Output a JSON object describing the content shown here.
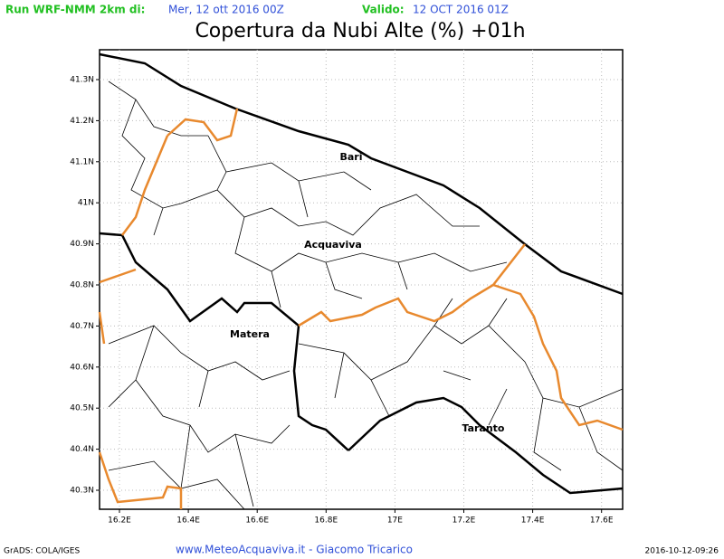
{
  "header": {
    "run_label": "Run WRF-NMM 2km di:",
    "run_date": "Mer, 12 ott 2016 00Z",
    "valid_label": "Valido:",
    "valid_date": "12 OCT 2016 01Z",
    "title": "Copertura da Nubi Alte (%) +01h"
  },
  "map": {
    "lon_labels": [
      "16.2E",
      "16.4E",
      "16.6E",
      "16.8E",
      "17E",
      "17.2E",
      "17.4E",
      "17.6E"
    ],
    "lat_labels": [
      "41.3N",
      "41.2N",
      "41.1N",
      "41N",
      "40.9N",
      "40.8N",
      "40.7N",
      "40.6N",
      "40.5N",
      "40.4N",
      "40.3N"
    ],
    "places": [
      {
        "label": "Bari"
      },
      {
        "label": "Acquaviva"
      },
      {
        "label": "Matera"
      },
      {
        "label": "Taranto"
      }
    ]
  },
  "footer": {
    "left": "GrADS: COLA/IGES",
    "center": "www.MeteoAcquaviva.it - Giacomo Tricarico",
    "right": "2016-10-12-09:26"
  }
}
